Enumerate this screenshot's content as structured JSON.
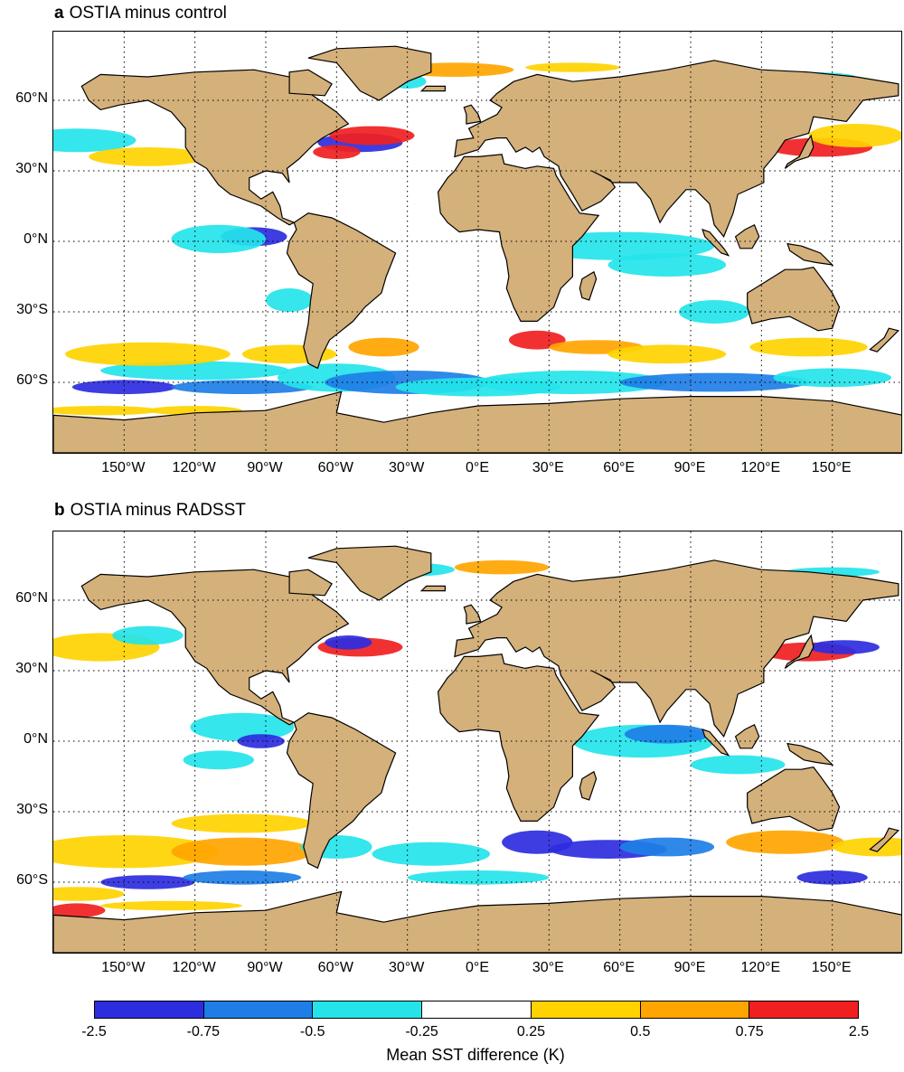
{
  "panels": [
    {
      "letter": "a",
      "title": "OSTIA minus control"
    },
    {
      "letter": "b",
      "title": "OSTIA minus RADSST"
    }
  ],
  "lat_labels": [
    "60°N",
    "30°N",
    "0°N",
    "30°S",
    "60°S"
  ],
  "lon_labels": [
    "150°W",
    "120°W",
    "90°W",
    "60°W",
    "30°W",
    "0°E",
    "30°E",
    "60°E",
    "90°E",
    "120°E",
    "150°E"
  ],
  "colorbar": {
    "label": "Mean SST difference (K)",
    "ticks": [
      "-2.5",
      "-0.75",
      "-0.5",
      "-0.25",
      "0.25",
      "0.5",
      "0.75",
      "2.5"
    ],
    "colors": [
      "#2d2de0",
      "#1e7ee6",
      "#24e4ea",
      "#ffffff",
      "#ffd200",
      "#ffa500",
      "#f02020"
    ]
  },
  "colors": {
    "land": "#d4b07a",
    "coast": "#000000"
  }
}
